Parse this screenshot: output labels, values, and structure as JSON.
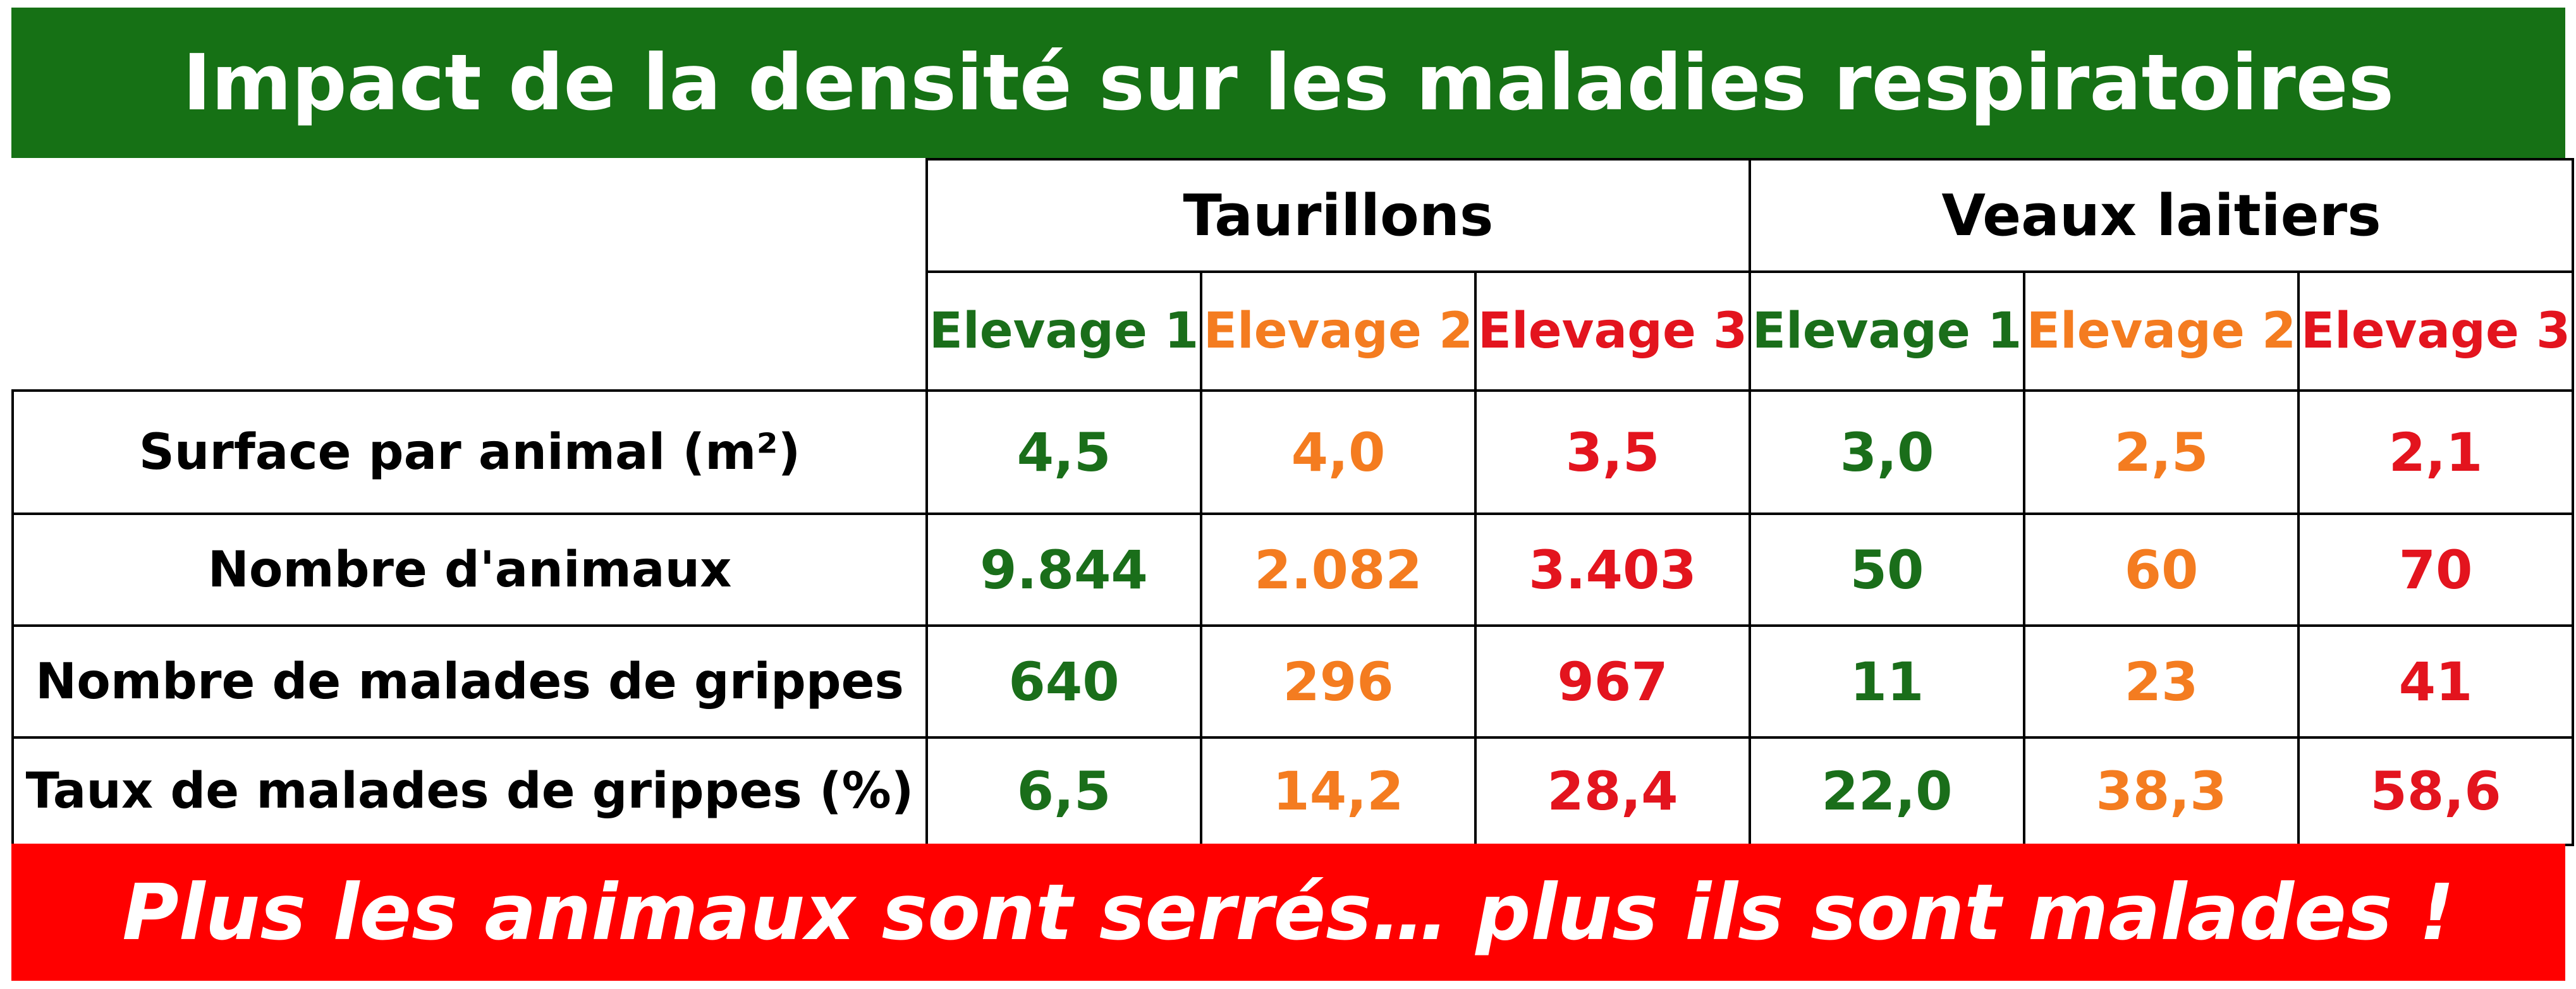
{
  "title": "Impact de la densité sur les maladies respiratoires",
  "footer": "Plus les animaux sont serrés… plus ils sont malades !",
  "colors": {
    "title_bg": "#167115",
    "footer_bg": "#ff0000",
    "elevage_1": "#1a6e1a",
    "elevage_2": "#f47c20",
    "elevage_3": "#e3141e"
  },
  "table": {
    "groups": [
      "Taurillons",
      "Veaux laitiers"
    ],
    "farms": [
      "Elevage 1",
      "Elevage 2",
      "Elevage 3",
      "Elevage 1",
      "Elevage 2",
      "Elevage 3"
    ],
    "rows": [
      {
        "label": "Surface par animal (m²)",
        "values": [
          "4,5",
          "4,0",
          "3,5",
          "3,0",
          "2,5",
          "2,1"
        ]
      },
      {
        "label": "Nombre d'animaux",
        "values": [
          "9.844",
          "2.082",
          "3.403",
          "50",
          "60",
          "70"
        ]
      },
      {
        "label": "Nombre de malades de grippes",
        "values": [
          "640",
          "296",
          "967",
          "11",
          "23",
          "41"
        ]
      },
      {
        "label": "Taux de malades de grippes (%)",
        "values": [
          "6,5",
          "14,2",
          "28,4",
          "22,0",
          "38,3",
          "58,6"
        ]
      }
    ]
  }
}
